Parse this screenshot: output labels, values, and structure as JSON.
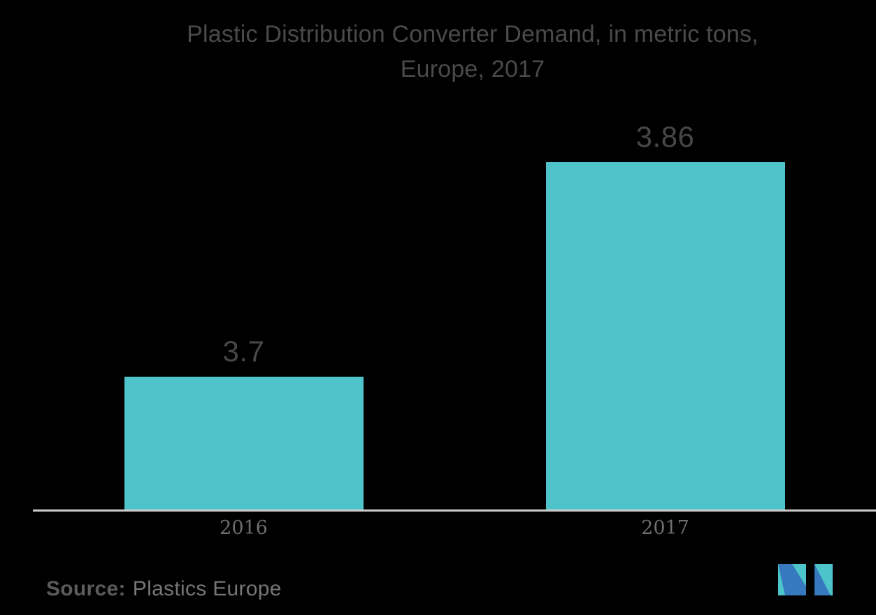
{
  "page": {
    "background_color": "#000000"
  },
  "chart_data": {
    "type": "bar",
    "title": "Plastic Distribution Converter Demand, in metric tons, Europe, 2017",
    "title_lines": [
      "Plastic Distribution Converter Demand, in metric tons,",
      "Europe, 2017"
    ],
    "categories": [
      "2016",
      "2017"
    ],
    "values": [
      3.7,
      3.86
    ],
    "value_labels": [
      "3.7",
      "3.86"
    ],
    "xlabel": "",
    "ylabel": "",
    "ylim": [
      3.6,
      3.9
    ],
    "grid": false,
    "legend": "none",
    "bar_color": "#4EC3C9",
    "title_color": "#4A4A4A",
    "value_label_color": "#474747",
    "axis_line_color": "#CCCCCC",
    "category_label_color": "#6E6E6E"
  },
  "footer": {
    "source_label": "Source:",
    "source_text": "Plastics Europe",
    "logo": {
      "name": "mordor-intelligence-logo",
      "blue": "#3679BE",
      "teal": "#4DC4CA"
    }
  }
}
